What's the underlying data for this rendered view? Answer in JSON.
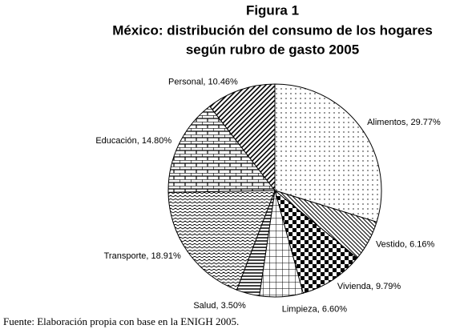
{
  "chart_data": {
    "type": "pie",
    "title": "Figura 1",
    "subtitle": [
      "México: distribución del consumo de los hogares",
      "según rubro de gasto 2005"
    ],
    "categories": [
      "Alimentos",
      "Vestido",
      "Vivienda",
      "Limpieza",
      "Salud",
      "Transporte",
      "Educación",
      "Personal"
    ],
    "values": [
      29.77,
      6.16,
      9.79,
      6.6,
      3.5,
      18.91,
      14.8,
      10.46
    ],
    "value_labels": [
      "Alimentos, 29.77%",
      "Vestido, 6.16%",
      "Vivienda, 9.79%",
      "Limpieza, 6.60%",
      "Salud, 3.50%",
      "Transporte, 18.91%",
      "Educación, 14.80%",
      "Personal, 10.46%"
    ],
    "note": "Fuente: Elaboración propia con base en la ENIGH 2005."
  }
}
